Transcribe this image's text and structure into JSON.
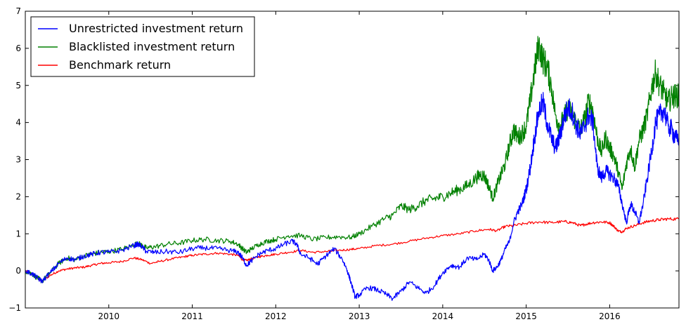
{
  "chart_data": {
    "type": "line",
    "title": "",
    "xlabel": "",
    "ylabel": "",
    "xlim": [
      2009.0,
      2016.83
    ],
    "ylim": [
      -1,
      7
    ],
    "x_ticks": [
      2010,
      2011,
      2012,
      2013,
      2014,
      2015,
      2016
    ],
    "x_tick_labels": [
      "2010",
      "2011",
      "2012",
      "2013",
      "2014",
      "2015",
      "2016"
    ],
    "y_ticks": [
      -1,
      0,
      1,
      2,
      3,
      4,
      5,
      6,
      7
    ],
    "y_tick_labels": [
      "−1",
      "0",
      "1",
      "2",
      "3",
      "4",
      "5",
      "6",
      "7"
    ],
    "legend_position": "top-left",
    "series": [
      {
        "name": "Unrestricted investment return",
        "color": "#0000ff",
        "points": [
          [
            2009.0,
            0.0
          ],
          [
            2009.08,
            -0.08
          ],
          [
            2009.15,
            -0.2
          ],
          [
            2009.2,
            -0.28
          ],
          [
            2009.3,
            -0.05
          ],
          [
            2009.4,
            0.2
          ],
          [
            2009.5,
            0.35
          ],
          [
            2009.6,
            0.3
          ],
          [
            2009.7,
            0.4
          ],
          [
            2009.8,
            0.45
          ],
          [
            2009.9,
            0.5
          ],
          [
            2010.0,
            0.5
          ],
          [
            2010.15,
            0.55
          ],
          [
            2010.3,
            0.68
          ],
          [
            2010.35,
            0.72
          ],
          [
            2010.4,
            0.65
          ],
          [
            2010.45,
            0.52
          ],
          [
            2010.55,
            0.5
          ],
          [
            2010.7,
            0.52
          ],
          [
            2010.85,
            0.5
          ],
          [
            2011.0,
            0.6
          ],
          [
            2011.15,
            0.62
          ],
          [
            2011.3,
            0.6
          ],
          [
            2011.45,
            0.55
          ],
          [
            2011.55,
            0.5
          ],
          [
            2011.6,
            0.35
          ],
          [
            2011.65,
            0.15
          ],
          [
            2011.7,
            0.25
          ],
          [
            2011.8,
            0.45
          ],
          [
            2011.9,
            0.55
          ],
          [
            2012.0,
            0.6
          ],
          [
            2012.1,
            0.72
          ],
          [
            2012.2,
            0.8
          ],
          [
            2012.25,
            0.72
          ],
          [
            2012.3,
            0.45
          ],
          [
            2012.4,
            0.35
          ],
          [
            2012.5,
            0.18
          ],
          [
            2012.6,
            0.4
          ],
          [
            2012.7,
            0.6
          ],
          [
            2012.8,
            0.3
          ],
          [
            2012.85,
            0.05
          ],
          [
            2012.9,
            -0.3
          ],
          [
            2012.95,
            -0.7
          ],
          [
            2013.0,
            -0.65
          ],
          [
            2013.1,
            -0.45
          ],
          [
            2013.2,
            -0.5
          ],
          [
            2013.3,
            -0.6
          ],
          [
            2013.4,
            -0.75
          ],
          [
            2013.5,
            -0.55
          ],
          [
            2013.6,
            -0.3
          ],
          [
            2013.7,
            -0.45
          ],
          [
            2013.8,
            -0.6
          ],
          [
            2013.9,
            -0.4
          ],
          [
            2014.0,
            -0.05
          ],
          [
            2014.1,
            0.15
          ],
          [
            2014.2,
            0.1
          ],
          [
            2014.3,
            0.35
          ],
          [
            2014.4,
            0.3
          ],
          [
            2014.5,
            0.45
          ],
          [
            2014.55,
            0.3
          ],
          [
            2014.6,
            0.0
          ],
          [
            2014.65,
            0.1
          ],
          [
            2014.7,
            0.3
          ],
          [
            2014.75,
            0.6
          ],
          [
            2014.8,
            0.8
          ],
          [
            2014.85,
            1.3
          ],
          [
            2014.9,
            1.6
          ],
          [
            2014.95,
            1.8
          ],
          [
            2015.0,
            2.2
          ],
          [
            2015.05,
            2.8
          ],
          [
            2015.1,
            3.6
          ],
          [
            2015.15,
            4.3
          ],
          [
            2015.2,
            4.55
          ],
          [
            2015.25,
            4.0
          ],
          [
            2015.3,
            3.6
          ],
          [
            2015.35,
            3.3
          ],
          [
            2015.4,
            3.6
          ],
          [
            2015.45,
            4.1
          ],
          [
            2015.5,
            4.4
          ],
          [
            2015.55,
            4.3
          ],
          [
            2015.6,
            3.9
          ],
          [
            2015.65,
            3.7
          ],
          [
            2015.7,
            3.9
          ],
          [
            2015.75,
            4.2
          ],
          [
            2015.8,
            4.0
          ],
          [
            2015.85,
            2.8
          ],
          [
            2015.9,
            2.5
          ],
          [
            2015.95,
            2.7
          ],
          [
            2016.0,
            2.6
          ],
          [
            2016.05,
            2.5
          ],
          [
            2016.1,
            2.3
          ],
          [
            2016.15,
            1.8
          ],
          [
            2016.2,
            1.3
          ],
          [
            2016.25,
            1.8
          ],
          [
            2016.3,
            1.6
          ],
          [
            2016.35,
            1.3
          ],
          [
            2016.4,
            1.8
          ],
          [
            2016.45,
            2.5
          ],
          [
            2016.5,
            3.2
          ],
          [
            2016.55,
            4.0
          ],
          [
            2016.6,
            4.2
          ],
          [
            2016.65,
            4.35
          ],
          [
            2016.7,
            3.9
          ],
          [
            2016.75,
            3.8
          ],
          [
            2016.78,
            3.55
          ],
          [
            2016.83,
            3.58
          ]
        ]
      },
      {
        "name": "Blacklisted investment return",
        "color": "#008000",
        "points": [
          [
            2009.0,
            0.0
          ],
          [
            2009.08,
            -0.08
          ],
          [
            2009.15,
            -0.2
          ],
          [
            2009.2,
            -0.28
          ],
          [
            2009.3,
            -0.05
          ],
          [
            2009.4,
            0.2
          ],
          [
            2009.5,
            0.35
          ],
          [
            2009.6,
            0.3
          ],
          [
            2009.7,
            0.4
          ],
          [
            2009.8,
            0.45
          ],
          [
            2009.9,
            0.5
          ],
          [
            2010.0,
            0.52
          ],
          [
            2010.15,
            0.58
          ],
          [
            2010.3,
            0.7
          ],
          [
            2010.35,
            0.75
          ],
          [
            2010.4,
            0.68
          ],
          [
            2010.45,
            0.62
          ],
          [
            2010.55,
            0.65
          ],
          [
            2010.7,
            0.72
          ],
          [
            2010.85,
            0.75
          ],
          [
            2011.0,
            0.82
          ],
          [
            2011.15,
            0.85
          ],
          [
            2011.3,
            0.82
          ],
          [
            2011.45,
            0.8
          ],
          [
            2011.55,
            0.72
          ],
          [
            2011.6,
            0.6
          ],
          [
            2011.65,
            0.5
          ],
          [
            2011.7,
            0.58
          ],
          [
            2011.8,
            0.72
          ],
          [
            2011.9,
            0.8
          ],
          [
            2012.0,
            0.85
          ],
          [
            2012.15,
            0.95
          ],
          [
            2012.3,
            0.95
          ],
          [
            2012.45,
            0.85
          ],
          [
            2012.6,
            0.9
          ],
          [
            2012.75,
            0.92
          ],
          [
            2012.9,
            0.9
          ],
          [
            2013.0,
            1.0
          ],
          [
            2013.15,
            1.2
          ],
          [
            2013.3,
            1.4
          ],
          [
            2013.4,
            1.5
          ],
          [
            2013.5,
            1.75
          ],
          [
            2013.6,
            1.65
          ],
          [
            2013.7,
            1.75
          ],
          [
            2013.8,
            1.9
          ],
          [
            2013.9,
            1.95
          ],
          [
            2014.0,
            2.0
          ],
          [
            2014.1,
            2.1
          ],
          [
            2014.2,
            2.2
          ],
          [
            2014.3,
            2.3
          ],
          [
            2014.4,
            2.5
          ],
          [
            2014.45,
            2.6
          ],
          [
            2014.5,
            2.55
          ],
          [
            2014.55,
            2.3
          ],
          [
            2014.6,
            1.95
          ],
          [
            2014.65,
            2.3
          ],
          [
            2014.7,
            2.6
          ],
          [
            2014.75,
            2.9
          ],
          [
            2014.8,
            3.4
          ],
          [
            2014.85,
            3.8
          ],
          [
            2014.9,
            3.6
          ],
          [
            2014.95,
            3.7
          ],
          [
            2015.0,
            3.9
          ],
          [
            2015.05,
            4.6
          ],
          [
            2015.1,
            5.4
          ],
          [
            2015.15,
            6.1
          ],
          [
            2015.2,
            5.7
          ],
          [
            2015.25,
            5.5
          ],
          [
            2015.3,
            5.0
          ],
          [
            2015.35,
            4.2
          ],
          [
            2015.4,
            3.9
          ],
          [
            2015.45,
            4.1
          ],
          [
            2015.5,
            4.4
          ],
          [
            2015.55,
            4.2
          ],
          [
            2015.6,
            4.0
          ],
          [
            2015.65,
            3.8
          ],
          [
            2015.7,
            4.1
          ],
          [
            2015.75,
            4.6
          ],
          [
            2015.8,
            4.3
          ],
          [
            2015.85,
            3.6
          ],
          [
            2015.9,
            3.2
          ],
          [
            2015.95,
            3.6
          ],
          [
            2016.0,
            3.3
          ],
          [
            2016.05,
            3.1
          ],
          [
            2016.1,
            2.7
          ],
          [
            2016.15,
            2.2
          ],
          [
            2016.2,
            2.9
          ],
          [
            2016.25,
            3.3
          ],
          [
            2016.3,
            2.8
          ],
          [
            2016.35,
            3.5
          ],
          [
            2016.4,
            3.8
          ],
          [
            2016.45,
            4.2
          ],
          [
            2016.5,
            4.9
          ],
          [
            2016.55,
            5.35
          ],
          [
            2016.6,
            5.0
          ],
          [
            2016.65,
            4.8
          ],
          [
            2016.7,
            4.55
          ],
          [
            2016.75,
            4.7
          ],
          [
            2016.78,
            4.72
          ],
          [
            2016.83,
            4.72
          ]
        ]
      },
      {
        "name": "Benchmark return",
        "color": "#ff0000",
        "points": [
          [
            2009.0,
            0.0
          ],
          [
            2009.08,
            -0.08
          ],
          [
            2009.15,
            -0.2
          ],
          [
            2009.2,
            -0.28
          ],
          [
            2009.3,
            -0.12
          ],
          [
            2009.4,
            0.0
          ],
          [
            2009.5,
            0.05
          ],
          [
            2009.6,
            0.08
          ],
          [
            2009.7,
            0.1
          ],
          [
            2009.8,
            0.15
          ],
          [
            2009.9,
            0.2
          ],
          [
            2010.0,
            0.22
          ],
          [
            2010.15,
            0.25
          ],
          [
            2010.3,
            0.35
          ],
          [
            2010.4,
            0.3
          ],
          [
            2010.5,
            0.2
          ],
          [
            2010.6,
            0.25
          ],
          [
            2010.75,
            0.32
          ],
          [
            2010.9,
            0.38
          ],
          [
            2011.0,
            0.42
          ],
          [
            2011.15,
            0.45
          ],
          [
            2011.3,
            0.48
          ],
          [
            2011.45,
            0.45
          ],
          [
            2011.55,
            0.42
          ],
          [
            2011.6,
            0.3
          ],
          [
            2011.65,
            0.28
          ],
          [
            2011.7,
            0.32
          ],
          [
            2011.8,
            0.38
          ],
          [
            2011.9,
            0.42
          ],
          [
            2012.0,
            0.45
          ],
          [
            2012.15,
            0.5
          ],
          [
            2012.3,
            0.55
          ],
          [
            2012.45,
            0.5
          ],
          [
            2012.6,
            0.52
          ],
          [
            2012.75,
            0.55
          ],
          [
            2012.9,
            0.58
          ],
          [
            2013.0,
            0.6
          ],
          [
            2013.2,
            0.68
          ],
          [
            2013.4,
            0.72
          ],
          [
            2013.6,
            0.8
          ],
          [
            2013.8,
            0.88
          ],
          [
            2014.0,
            0.95
          ],
          [
            2014.2,
            1.0
          ],
          [
            2014.4,
            1.08
          ],
          [
            2014.55,
            1.12
          ],
          [
            2014.65,
            1.08
          ],
          [
            2014.75,
            1.2
          ],
          [
            2014.85,
            1.22
          ],
          [
            2015.0,
            1.28
          ],
          [
            2015.15,
            1.32
          ],
          [
            2015.3,
            1.3
          ],
          [
            2015.45,
            1.33
          ],
          [
            2015.55,
            1.3
          ],
          [
            2015.65,
            1.22
          ],
          [
            2015.7,
            1.25
          ],
          [
            2015.8,
            1.3
          ],
          [
            2015.9,
            1.32
          ],
          [
            2016.0,
            1.3
          ],
          [
            2016.05,
            1.2
          ],
          [
            2016.1,
            1.08
          ],
          [
            2016.15,
            1.05
          ],
          [
            2016.2,
            1.15
          ],
          [
            2016.3,
            1.22
          ],
          [
            2016.4,
            1.3
          ],
          [
            2016.5,
            1.35
          ],
          [
            2016.6,
            1.38
          ],
          [
            2016.7,
            1.4
          ],
          [
            2016.83,
            1.4
          ]
        ]
      }
    ]
  }
}
